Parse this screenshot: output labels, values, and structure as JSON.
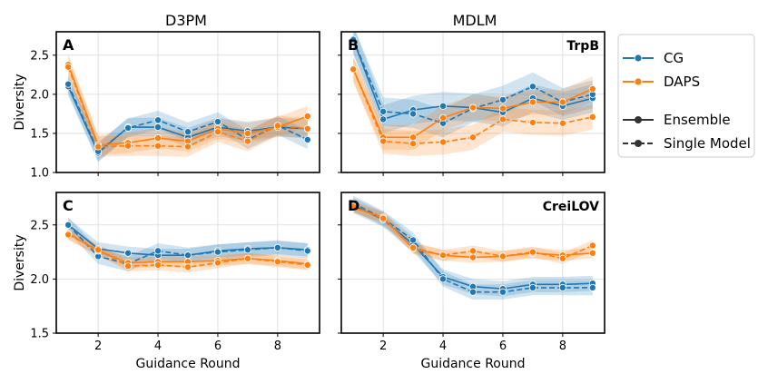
{
  "column_titles": [
    "D3PM",
    "MDLM"
  ],
  "legend": {
    "methods": [
      "CG",
      "DAPS"
    ],
    "styles": [
      "Ensemble",
      "Single Model"
    ]
  },
  "colors": {
    "CG": "#1f77b4",
    "DAPS": "#ff7f0e",
    "grid": "#d9d9d9"
  },
  "chart_data": [
    {
      "panel_label": "A",
      "column": "D3PM",
      "row": 0,
      "protein_label": "",
      "type": "line",
      "xlabel": "",
      "ylabel": "Diversity",
      "xlim": [
        0.6,
        9.4
      ],
      "ylim": [
        1.0,
        2.8
      ],
      "xticks": [],
      "yticks": [
        1.0,
        1.5,
        2.0,
        2.5
      ],
      "x": [
        1,
        2,
        3,
        4,
        5,
        6,
        7,
        8,
        9
      ],
      "series": [
        {
          "name": "CG",
          "style": "Ensemble",
          "values": [
            2.1,
            1.25,
            1.58,
            1.58,
            1.45,
            1.58,
            1.53,
            1.58,
            1.56
          ],
          "band": 0.12
        },
        {
          "name": "CG",
          "style": "Single Model",
          "values": [
            2.13,
            1.27,
            1.57,
            1.67,
            1.52,
            1.65,
            1.42,
            1.6,
            1.42
          ],
          "band": 0.12
        },
        {
          "name": "DAPS",
          "style": "Ensemble",
          "values": [
            2.38,
            1.35,
            1.38,
            1.44,
            1.4,
            1.56,
            1.5,
            1.58,
            1.72
          ],
          "band": 0.13
        },
        {
          "name": "DAPS",
          "style": "Single Model",
          "values": [
            2.35,
            1.33,
            1.34,
            1.34,
            1.33,
            1.52,
            1.4,
            1.6,
            1.56
          ],
          "band": 0.13
        }
      ]
    },
    {
      "panel_label": "B",
      "column": "MDLM",
      "row": 0,
      "protein_label": "TrpB",
      "type": "line",
      "xlabel": "",
      "ylabel": "",
      "xlim": [
        0.6,
        9.4
      ],
      "ylim": [
        1.0,
        2.8
      ],
      "xticks": [],
      "yticks": [],
      "x": [
        1,
        2,
        3,
        4,
        5,
        6,
        7,
        8,
        9
      ],
      "series": [
        {
          "name": "CG",
          "style": "Ensemble",
          "values": [
            2.7,
            1.68,
            1.8,
            1.85,
            1.83,
            1.77,
            1.95,
            1.85,
            1.95
          ],
          "band": 0.18
        },
        {
          "name": "CG",
          "style": "Single Model",
          "values": [
            2.7,
            1.78,
            1.75,
            1.63,
            1.82,
            1.93,
            2.1,
            1.9,
            2.0
          ],
          "band": 0.18
        },
        {
          "name": "DAPS",
          "style": "Ensemble",
          "values": [
            2.32,
            1.45,
            1.45,
            1.7,
            1.83,
            1.82,
            1.9,
            1.9,
            2.07
          ],
          "band": 0.16
        },
        {
          "name": "DAPS",
          "style": "Single Model",
          "values": [
            2.32,
            1.4,
            1.37,
            1.39,
            1.45,
            1.68,
            1.64,
            1.63,
            1.71
          ],
          "band": 0.16
        }
      ]
    },
    {
      "panel_label": "C",
      "column": "D3PM",
      "row": 1,
      "protein_label": "",
      "type": "line",
      "xlabel": "Guidance Round",
      "ylabel": "Diversity",
      "xlim": [
        0.6,
        9.4
      ],
      "ylim": [
        1.5,
        2.8
      ],
      "xticks": [
        2,
        4,
        6,
        8
      ],
      "yticks": [
        1.5,
        2.0,
        2.5
      ],
      "x": [
        1,
        2,
        3,
        4,
        5,
        6,
        7,
        8,
        9
      ],
      "series": [
        {
          "name": "CG",
          "style": "Ensemble",
          "values": [
            2.5,
            2.28,
            2.24,
            2.22,
            2.22,
            2.26,
            2.28,
            2.29,
            2.27
          ],
          "band": 0.06
        },
        {
          "name": "CG",
          "style": "Single Model",
          "values": [
            2.5,
            2.21,
            2.14,
            2.26,
            2.22,
            2.25,
            2.27,
            2.29,
            2.26
          ],
          "band": 0.07
        },
        {
          "name": "DAPS",
          "style": "Ensemble",
          "values": [
            2.42,
            2.26,
            2.15,
            2.16,
            2.16,
            2.17,
            2.19,
            2.17,
            2.14
          ],
          "band": 0.05
        },
        {
          "name": "DAPS",
          "style": "Single Model",
          "values": [
            2.41,
            2.27,
            2.12,
            2.13,
            2.11,
            2.15,
            2.19,
            2.16,
            2.13
          ],
          "band": 0.05
        }
      ]
    },
    {
      "panel_label": "D",
      "column": "MDLM",
      "row": 1,
      "protein_label": "CreiLOV",
      "type": "line",
      "xlabel": "Guidance Round",
      "ylabel": "",
      "xlim": [
        0.6,
        9.4
      ],
      "ylim": [
        1.5,
        2.8
      ],
      "xticks": [
        2,
        4,
        6,
        8
      ],
      "yticks": [],
      "x": [
        1,
        2,
        3,
        4,
        5,
        6,
        7,
        8,
        9
      ],
      "series": [
        {
          "name": "CG",
          "style": "Ensemble",
          "values": [
            2.68,
            2.55,
            2.32,
            2.02,
            1.93,
            1.91,
            1.95,
            1.95,
            1.96
          ],
          "band": 0.07
        },
        {
          "name": "CG",
          "style": "Single Model",
          "values": [
            2.7,
            2.56,
            2.36,
            2.0,
            1.88,
            1.88,
            1.92,
            1.92,
            1.92
          ],
          "band": 0.07
        },
        {
          "name": "DAPS",
          "style": "Ensemble",
          "values": [
            2.66,
            2.57,
            2.28,
            2.22,
            2.2,
            2.21,
            2.24,
            2.22,
            2.24
          ],
          "band": 0.05
        },
        {
          "name": "DAPS",
          "style": "Single Model",
          "values": [
            2.67,
            2.56,
            2.29,
            2.22,
            2.26,
            2.21,
            2.25,
            2.19,
            2.31
          ],
          "band": 0.05
        }
      ]
    }
  ]
}
